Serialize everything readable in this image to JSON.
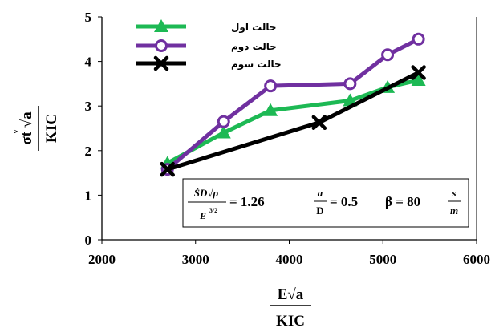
{
  "chart_data": {
    "type": "line",
    "title": "",
    "xlabel": {
      "numerator": "E√a",
      "denominator": "KIC"
    },
    "ylabel": {
      "numerator": "σt √a",
      "denominator": "KIC",
      "accent": "v"
    },
    "xlim": [
      2000,
      6000
    ],
    "ylim": [
      0,
      5
    ],
    "xticks": [
      "2000",
      "3000",
      "4000",
      "5000",
      "6000"
    ],
    "yticks": [
      "0",
      "1",
      "2",
      "3",
      "4",
      "5"
    ],
    "grid": false,
    "legend_position": "top-left",
    "series": [
      {
        "name": "حالت اول",
        "color": "#1db954",
        "marker": "triangle",
        "x": [
          2700,
          3300,
          3800,
          4650,
          5050,
          5380
        ],
        "y": [
          1.72,
          2.4,
          2.9,
          3.12,
          3.42,
          3.58
        ]
      },
      {
        "name": "حالت دوم",
        "color": "#7030a0",
        "marker": "circle",
        "x": [
          2700,
          3300,
          3800,
          4650,
          5050,
          5380
        ],
        "y": [
          1.58,
          2.65,
          3.45,
          3.5,
          4.15,
          4.5
        ]
      },
      {
        "name": "حالت سوم",
        "color": "#000000",
        "marker": "x",
        "x": [
          2700,
          4320,
          5380
        ],
        "y": [
          1.58,
          2.63,
          3.75
        ]
      }
    ],
    "annotation": {
      "formula_lhs_num": "ṠD√ρ",
      "formula_lhs_den": "E",
      "formula_lhs_den_exp": "3/2",
      "value1": "= 1.26",
      "ratio_num": "a",
      "ratio_den": "D",
      "value2": "= 0.5",
      "beta_text": "β = 80",
      "unit_num": "s",
      "unit_den": "m"
    }
  }
}
